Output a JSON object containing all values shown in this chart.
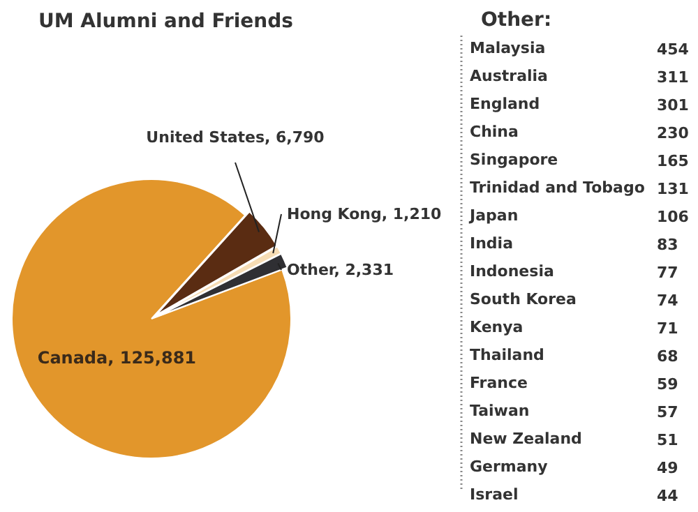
{
  "chart_data": [
    {
      "type": "pie",
      "title": "UM Alumni and Friends",
      "categories": [
        "Canada",
        "United States",
        "Hong Kong",
        "Other"
      ],
      "values": [
        125881,
        6790,
        1210,
        2331
      ],
      "value_labels": [
        "125,881",
        "6,790",
        "1,210",
        "2,331"
      ],
      "colors": [
        "#e2962b",
        "#5a2c12",
        "#f6dcb4",
        "#2f2f33"
      ]
    },
    {
      "type": "other",
      "title": "Other:",
      "categories": [
        "Malaysia",
        "Australia",
        "England",
        "China",
        "Singapore",
        "Trinidad and Tobago",
        "Japan",
        "India",
        "Indonesia",
        "South Korea",
        "Kenya",
        "Thailand",
        "France",
        "Taiwan",
        "New Zealand",
        "Germany",
        "Israel"
      ],
      "values": [
        454,
        311,
        301,
        230,
        165,
        131,
        106,
        83,
        77,
        74,
        71,
        68,
        59,
        57,
        51,
        49,
        44
      ],
      "data_labels": true
    }
  ]
}
